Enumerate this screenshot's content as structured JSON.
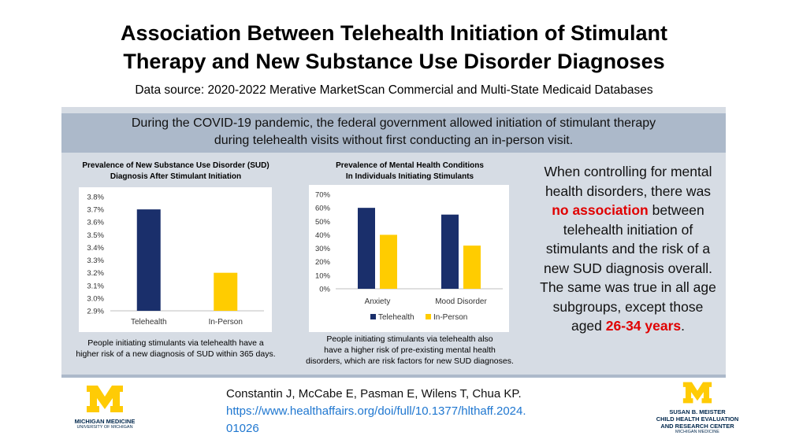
{
  "header": {
    "title_line1": "Association Between Telehealth Initiation of Stimulant",
    "title_line2": "Therapy and New Substance Use Disorder Diagnoses",
    "subtitle": "Data source: 2020-2022 Merative MarketScan Commercial and Multi-State Medicaid Databases"
  },
  "banner": {
    "line1": "During the COVID-19 pandemic, the federal government allowed initiation of stimulant therapy",
    "line2": "during telehealth visits without first conducting an in-person visit."
  },
  "colors": {
    "telehealth": "#1a2f6b",
    "in_person": "#ffcc00",
    "highlight": "#e00000"
  },
  "chart_data": [
    {
      "type": "bar",
      "title_line1": "Prevalence of New Substance Use Disorder (SUD)",
      "title_line2": "Diagnosis After Stimulant Initiation",
      "categories": [
        "Telehealth",
        "In-Person"
      ],
      "values": [
        3.7,
        3.2
      ],
      "yticks": [
        "3.8%",
        "3.7%",
        "3.6%",
        "3.5%",
        "3.4%",
        "3.3%",
        "3.2%",
        "3.1%",
        "3.0%",
        "2.9%"
      ],
      "ylim": [
        2.9,
        3.8
      ],
      "caption_line1": "People initiating stimulants via telehealth have a",
      "caption_line2": "higher risk of a new diagnosis of SUD within 365 days."
    },
    {
      "type": "bar",
      "title_line1": "Prevalence of Mental Health Conditions",
      "title_line2": "In Individuals Initiating Stimulants",
      "categories": [
        "Anxiety",
        "Mood Disorder"
      ],
      "series": [
        {
          "name": "Telehealth",
          "values": [
            60,
            55
          ]
        },
        {
          "name": "In-Person",
          "values": [
            40,
            32
          ]
        }
      ],
      "yticks": [
        "70%",
        "60%",
        "50%",
        "40%",
        "30%",
        "20%",
        "10%",
        "0%"
      ],
      "ylim": [
        0,
        70
      ],
      "legend": [
        "Telehealth",
        "In-Person"
      ],
      "caption_line1": "People initiating stimulants via telehealth also",
      "caption_line2": "have a higher risk of pre-existing mental health",
      "caption_line3": "disorders, which are risk factors for new SUD diagnoses."
    }
  ],
  "side": {
    "part1": "When controlling for mental health disorders, there was",
    "highlight1": "no association",
    "part2": "between telehealth initiation of stimulants and the risk of a new SUD diagnosis overall. The same was true in all age subgroups, except those aged",
    "highlight2": "26-34 years",
    "part3": "."
  },
  "citation": {
    "authors": "Constantin J, McCabe E, Pasman E, Wilens T, Chua KP.",
    "url_line1": "https://www.healthaffairs.org/doi/full/10.1377/hlthaff.2024.",
    "url_line2": "01026"
  },
  "logos": {
    "left_name": "MICHIGAN MEDICINE",
    "left_sub": "UNIVERSITY OF MICHIGAN",
    "right_line1": "SUSAN B. MEISTER",
    "right_line2": "CHILD HEALTH EVALUATION",
    "right_line3": "AND RESEARCH CENTER",
    "right_sub": "MICHIGAN MEDICINE"
  }
}
